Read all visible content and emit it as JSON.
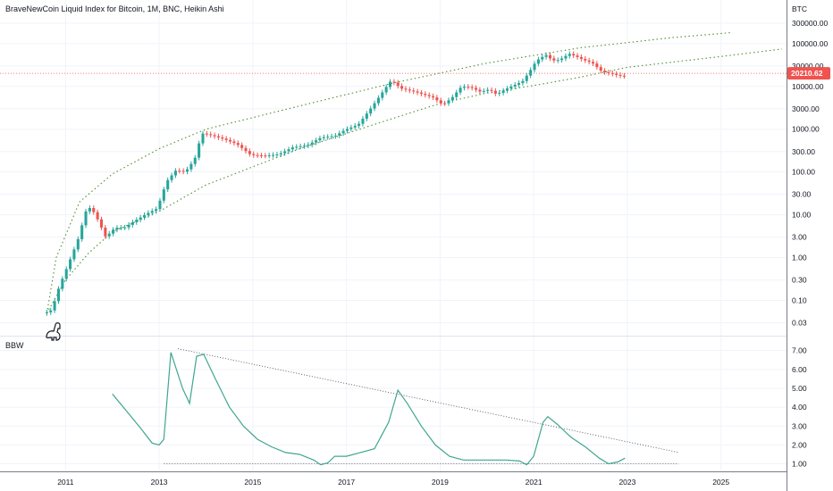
{
  "title": "BraveNewCoin Liquid Index for Bitcoin, 1M, BNC, Heikin Ashi",
  "chart_data": [
    {
      "type": "candlestick",
      "yscale": "log",
      "currency_label": "BTC",
      "last_price": "20210.62",
      "last_price_value": 20210.62,
      "ylim": [
        0.02,
        400000
      ],
      "xlim": [
        2009.6,
        2026.4
      ],
      "y_ticks": [
        "300000.00",
        "100000.00",
        "30000.00",
        "10000.00",
        "3000.00",
        "1000.00",
        "300.00",
        "100.00",
        "30.00",
        "10.00",
        "3.00",
        "1.00",
        "0.30",
        "0.10",
        "0.03"
      ],
      "y_tick_values": [
        300000,
        100000,
        30000,
        10000,
        3000,
        1000,
        300,
        100,
        30,
        10,
        3,
        1,
        0.3,
        0.1,
        0.03
      ],
      "x_ticks": [
        "2011",
        "2013",
        "2015",
        "2017",
        "2019",
        "2021",
        "2023",
        "2025"
      ],
      "x_tick_values": [
        2011,
        2013,
        2015,
        2017,
        2019,
        2021,
        2023,
        2025
      ],
      "price_anchors": [
        [
          2010.6,
          0.05
        ],
        [
          2010.75,
          0.06
        ],
        [
          2010.9,
          0.2
        ],
        [
          2011.1,
          0.7
        ],
        [
          2011.3,
          2.5
        ],
        [
          2011.5,
          15
        ],
        [
          2011.6,
          14
        ],
        [
          2011.75,
          7
        ],
        [
          2011.9,
          3
        ],
        [
          2012.1,
          5
        ],
        [
          2012.3,
          5
        ],
        [
          2012.5,
          7
        ],
        [
          2012.8,
          11
        ],
        [
          2013.0,
          14
        ],
        [
          2013.2,
          60
        ],
        [
          2013.4,
          110
        ],
        [
          2013.6,
          100
        ],
        [
          2013.8,
          200
        ],
        [
          2013.95,
          800
        ],
        [
          2014.1,
          750
        ],
        [
          2014.4,
          600
        ],
        [
          2014.7,
          450
        ],
        [
          2015.0,
          250
        ],
        [
          2015.3,
          240
        ],
        [
          2015.6,
          260
        ],
        [
          2015.9,
          380
        ],
        [
          2016.2,
          420
        ],
        [
          2016.5,
          640
        ],
        [
          2016.8,
          700
        ],
        [
          2017.0,
          950
        ],
        [
          2017.3,
          1300
        ],
        [
          2017.6,
          3500
        ],
        [
          2017.9,
          10000
        ],
        [
          2018.0,
          14000
        ],
        [
          2018.2,
          9000
        ],
        [
          2018.5,
          7500
        ],
        [
          2018.9,
          5500
        ],
        [
          2019.1,
          3700
        ],
        [
          2019.3,
          5500
        ],
        [
          2019.5,
          10000
        ],
        [
          2019.7,
          9500
        ],
        [
          2019.9,
          7500
        ],
        [
          2020.1,
          8500
        ],
        [
          2020.25,
          6500
        ],
        [
          2020.5,
          9300
        ],
        [
          2020.8,
          13000
        ],
        [
          2020.95,
          22000
        ],
        [
          2021.1,
          40000
        ],
        [
          2021.3,
          55000
        ],
        [
          2021.45,
          40000
        ],
        [
          2021.6,
          42000
        ],
        [
          2021.8,
          58000
        ],
        [
          2021.95,
          50000
        ],
        [
          2022.1,
          42000
        ],
        [
          2022.3,
          35000
        ],
        [
          2022.5,
          22000
        ],
        [
          2022.7,
          20000
        ],
        [
          2022.85,
          18000
        ],
        [
          2022.95,
          17500
        ]
      ],
      "upper_curve": [
        [
          2010.6,
          0.05
        ],
        [
          2010.8,
          1
        ],
        [
          2011.3,
          20
        ],
        [
          2012,
          90
        ],
        [
          2013,
          350
        ],
        [
          2014,
          1000
        ],
        [
          2016,
          3500
        ],
        [
          2018,
          12000
        ],
        [
          2020,
          35000
        ],
        [
          2022,
          80000
        ],
        [
          2024,
          140000
        ],
        [
          2025.2,
          180000
        ]
      ],
      "lower_curve": [
        [
          2010.6,
          0.05
        ],
        [
          2011,
          0.3
        ],
        [
          2011.5,
          1.3
        ],
        [
          2012,
          4
        ],
        [
          2013,
          12
        ],
        [
          2014,
          50
        ],
        [
          2016,
          350
        ],
        [
          2018,
          1800
        ],
        [
          2019,
          4000
        ],
        [
          2020,
          7000
        ],
        [
          2021,
          10500
        ],
        [
          2022,
          16500
        ],
        [
          2023,
          28000
        ],
        [
          2025,
          50000
        ],
        [
          2026.3,
          75000
        ]
      ]
    },
    {
      "type": "line",
      "series": [
        {
          "name": "BBW",
          "values_note": ""
        }
      ],
      "ylim": [
        0.6,
        7.6
      ],
      "y_ticks": [
        "7.00",
        "6.00",
        "5.00",
        "4.00",
        "3.00",
        "2.00",
        "1.00"
      ],
      "y_tick_values": [
        7,
        6,
        5,
        4,
        3,
        2,
        1
      ],
      "bbw_points": [
        [
          2012.0,
          4.7
        ],
        [
          2012.3,
          3.8
        ],
        [
          2012.6,
          2.9
        ],
        [
          2012.85,
          2.1
        ],
        [
          2013.0,
          2.0
        ],
        [
          2013.1,
          2.3
        ],
        [
          2013.25,
          6.9
        ],
        [
          2013.5,
          5.0
        ],
        [
          2013.65,
          4.2
        ],
        [
          2013.8,
          6.7
        ],
        [
          2013.95,
          6.8
        ],
        [
          2014.2,
          5.5
        ],
        [
          2014.5,
          4.0
        ],
        [
          2014.8,
          3.0
        ],
        [
          2015.1,
          2.3
        ],
        [
          2015.4,
          1.9
        ],
        [
          2015.7,
          1.6
        ],
        [
          2016.0,
          1.5
        ],
        [
          2016.3,
          1.2
        ],
        [
          2016.45,
          0.95
        ],
        [
          2016.6,
          1.05
        ],
        [
          2016.75,
          1.4
        ],
        [
          2017.0,
          1.4
        ],
        [
          2017.3,
          1.6
        ],
        [
          2017.6,
          1.8
        ],
        [
          2017.75,
          2.5
        ],
        [
          2017.9,
          3.2
        ],
        [
          2018.1,
          4.9
        ],
        [
          2018.3,
          4.2
        ],
        [
          2018.6,
          3.0
        ],
        [
          2018.9,
          2.0
        ],
        [
          2019.2,
          1.4
        ],
        [
          2019.5,
          1.2
        ],
        [
          2019.8,
          1.2
        ],
        [
          2020.1,
          1.2
        ],
        [
          2020.4,
          1.2
        ],
        [
          2020.7,
          1.15
        ],
        [
          2020.85,
          0.95
        ],
        [
          2021.0,
          1.4
        ],
        [
          2021.2,
          3.2
        ],
        [
          2021.3,
          3.5
        ],
        [
          2021.5,
          3.1
        ],
        [
          2021.8,
          2.4
        ],
        [
          2022.1,
          1.9
        ],
        [
          2022.4,
          1.3
        ],
        [
          2022.6,
          1.0
        ],
        [
          2022.8,
          1.1
        ],
        [
          2022.95,
          1.3
        ]
      ],
      "resistance_line": [
        [
          2013.4,
          7.1
        ],
        [
          2024.1,
          1.6
        ]
      ],
      "support_line": [
        [
          2013.1,
          1.0
        ],
        [
          2024.1,
          1.0
        ]
      ]
    }
  ],
  "pane2_label": "BBW",
  "colors": {
    "up": "#26a69a",
    "down": "#ef5350",
    "curve": "#4e8d2e",
    "bbw": "#3fa68f",
    "axis_text": "#131722",
    "grid": "#f0f3fa",
    "price_line": "#ef5350"
  },
  "icons": {
    "watermark": "dinosaur-icon"
  }
}
